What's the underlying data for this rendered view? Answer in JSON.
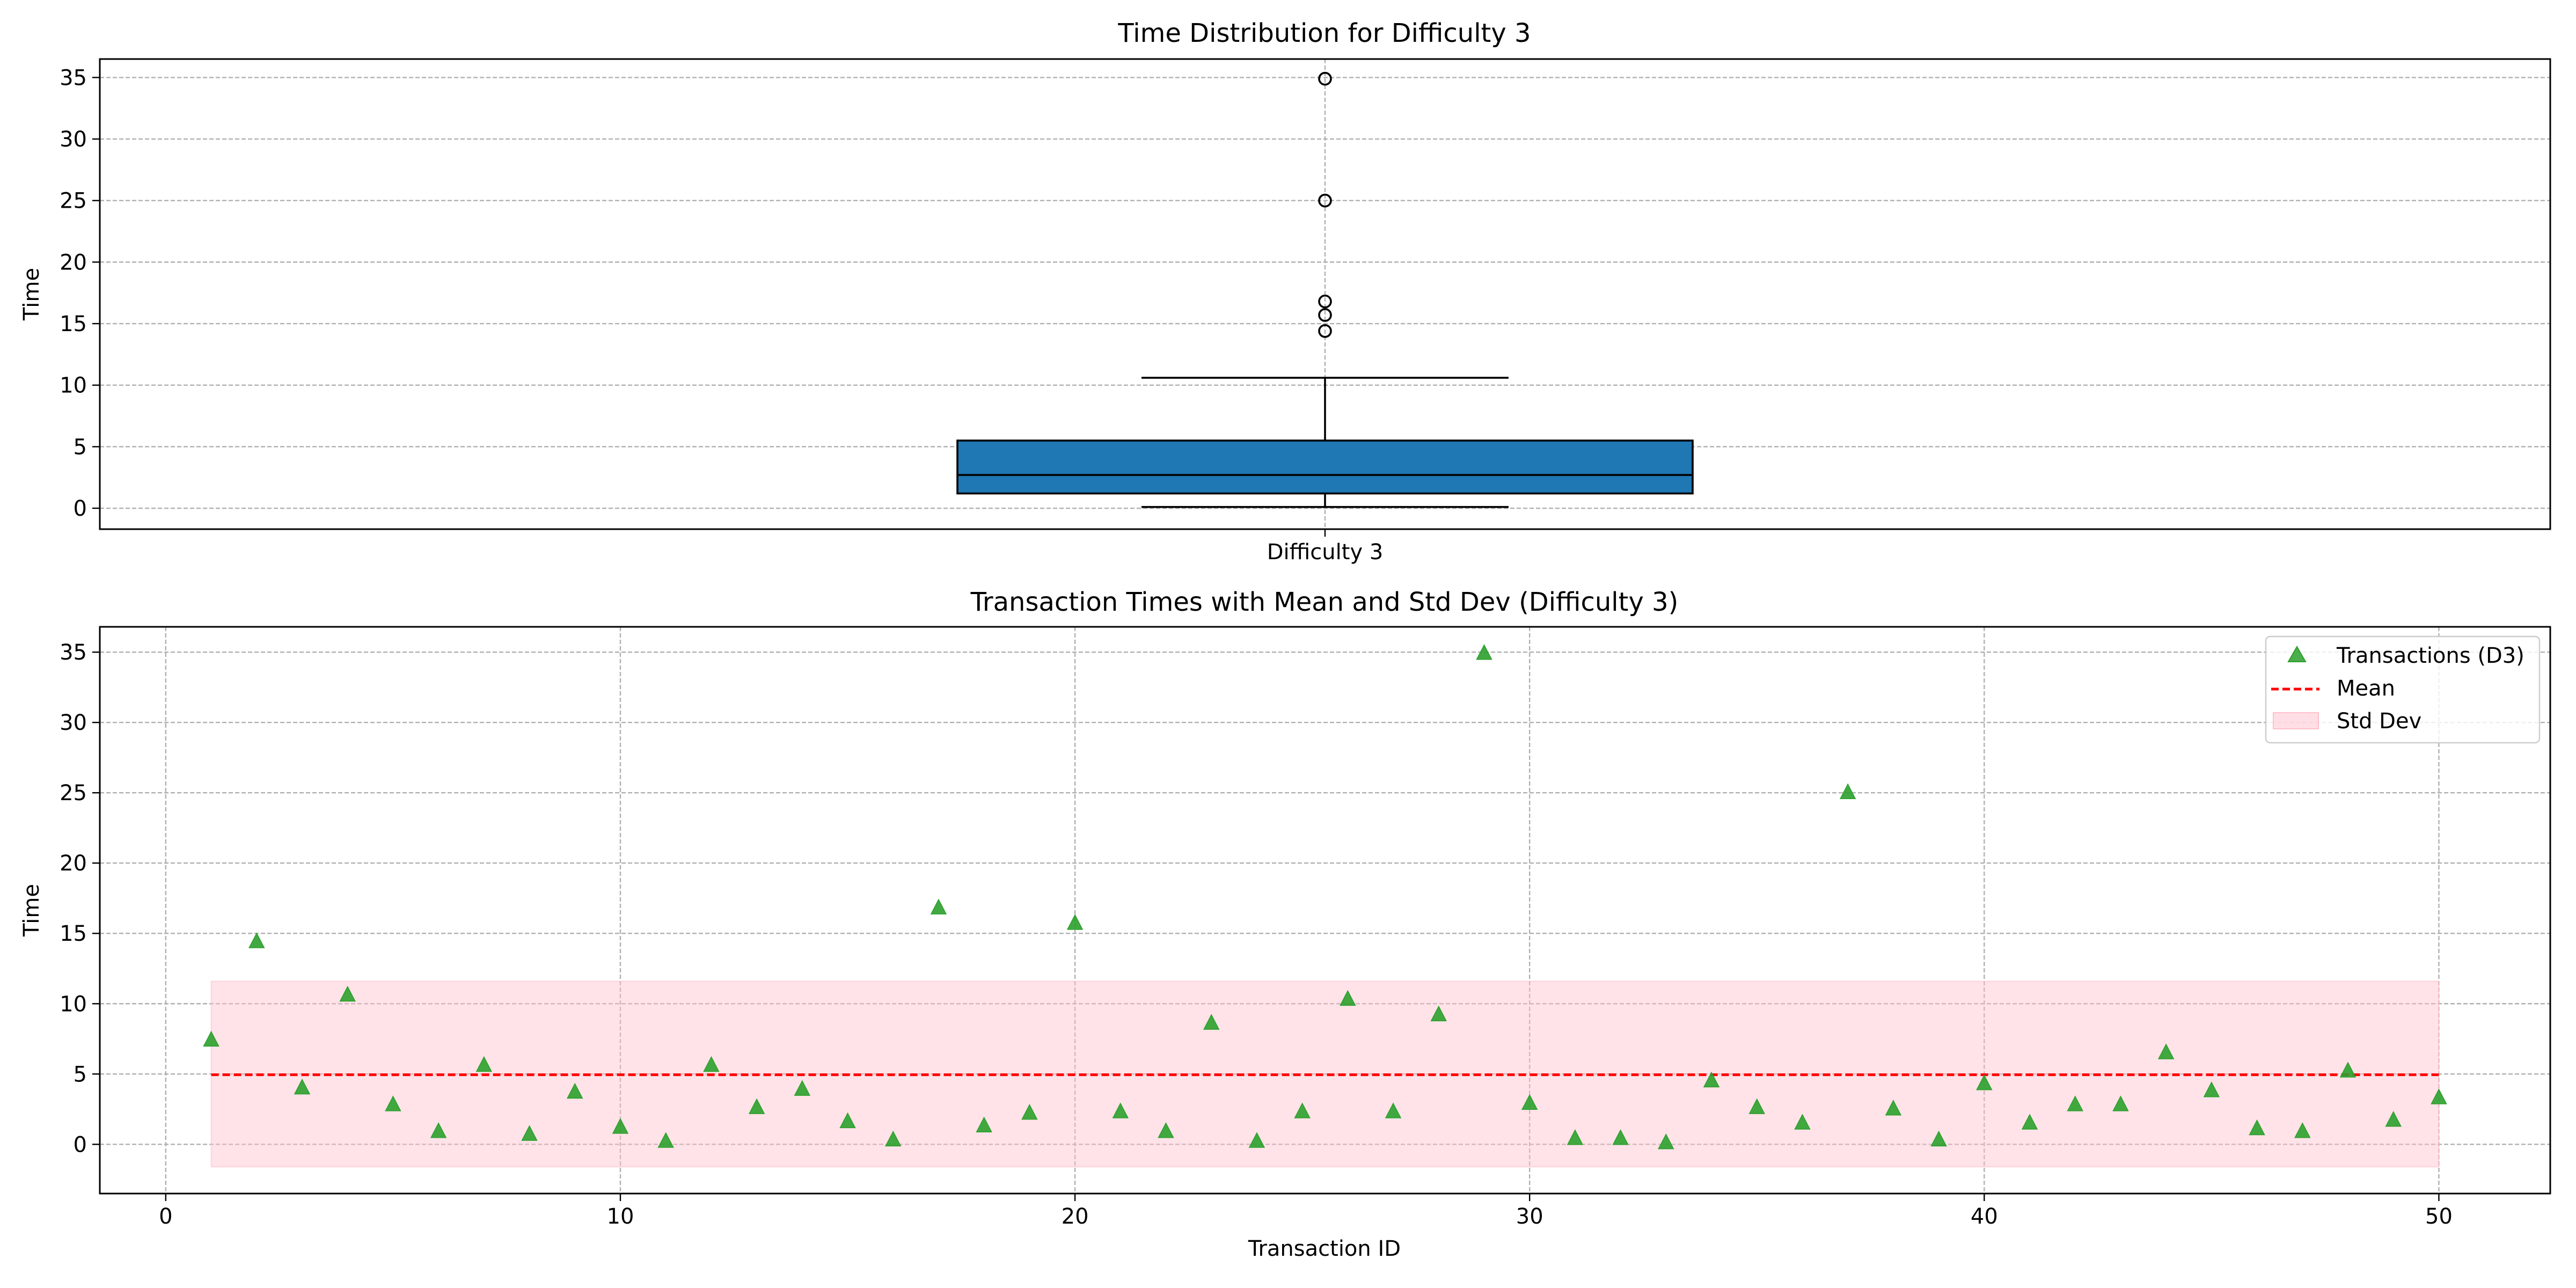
{
  "chart_data": [
    {
      "type": "box",
      "title": "Time Distribution for Difficulty 3",
      "ylabel": "Time",
      "xlabel": "",
      "categories": [
        "Difficulty 3"
      ],
      "ylim": [
        -1.7,
        36.5
      ],
      "yticks": [
        0,
        5,
        10,
        15,
        20,
        25,
        30,
        35
      ],
      "grid": true,
      "box": {
        "whisker_low": 0.1,
        "q1": 1.2,
        "median": 2.7,
        "q3": 5.5,
        "whisker_high": 10.6,
        "outliers": [
          14.4,
          15.7,
          16.8,
          25.0,
          34.9
        ]
      },
      "colors": {
        "box_fill": "#1f77b4",
        "box_edge": "#000000"
      }
    },
    {
      "type": "scatter",
      "title": "Transaction Times with Mean and Std Dev (Difficulty 3)",
      "xlabel": "Transaction ID",
      "ylabel": "Time",
      "xlim": [
        -1.45,
        52.45
      ],
      "ylim": [
        -3.5,
        36.8
      ],
      "xticks": [
        0,
        10,
        20,
        30,
        40,
        50
      ],
      "yticks": [
        0,
        5,
        10,
        15,
        20,
        25,
        30,
        35
      ],
      "grid": true,
      "legend_position": "top-right",
      "series": [
        {
          "name": "Transactions (D3)",
          "marker": "triangle",
          "color": "#2ca02c",
          "x": [
            1,
            2,
            3,
            4,
            5,
            6,
            7,
            8,
            9,
            10,
            11,
            12,
            13,
            14,
            15,
            16,
            17,
            18,
            19,
            20,
            21,
            22,
            23,
            24,
            25,
            26,
            27,
            28,
            29,
            30,
            31,
            32,
            33,
            34,
            35,
            36,
            37,
            38,
            39,
            40,
            41,
            42,
            43,
            44,
            45,
            46,
            47,
            48,
            49,
            50
          ],
          "y": [
            7.4,
            14.4,
            4.0,
            10.6,
            2.8,
            0.9,
            5.6,
            0.7,
            3.7,
            1.2,
            0.2,
            5.6,
            2.6,
            3.9,
            1.6,
            0.3,
            16.8,
            1.3,
            2.2,
            15.7,
            2.3,
            0.9,
            8.6,
            0.2,
            2.3,
            10.3,
            2.3,
            9.2,
            34.9,
            2.9,
            0.4,
            0.4,
            0.1,
            4.5,
            2.6,
            1.5,
            25.0,
            2.5,
            0.3,
            4.3,
            1.5,
            2.8,
            2.8,
            6.5,
            3.8,
            1.1,
            0.9,
            5.2,
            1.7,
            3.3
          ]
        },
        {
          "name": "Mean",
          "type": "hline",
          "style": "dashed",
          "color": "#ff0000",
          "value": 4.95,
          "x_range": [
            1,
            50
          ]
        },
        {
          "name": "Std Dev",
          "type": "band",
          "color": "#ffc0cb",
          "low": -1.6,
          "high": 11.6,
          "x_range": [
            1,
            50
          ]
        }
      ]
    }
  ]
}
